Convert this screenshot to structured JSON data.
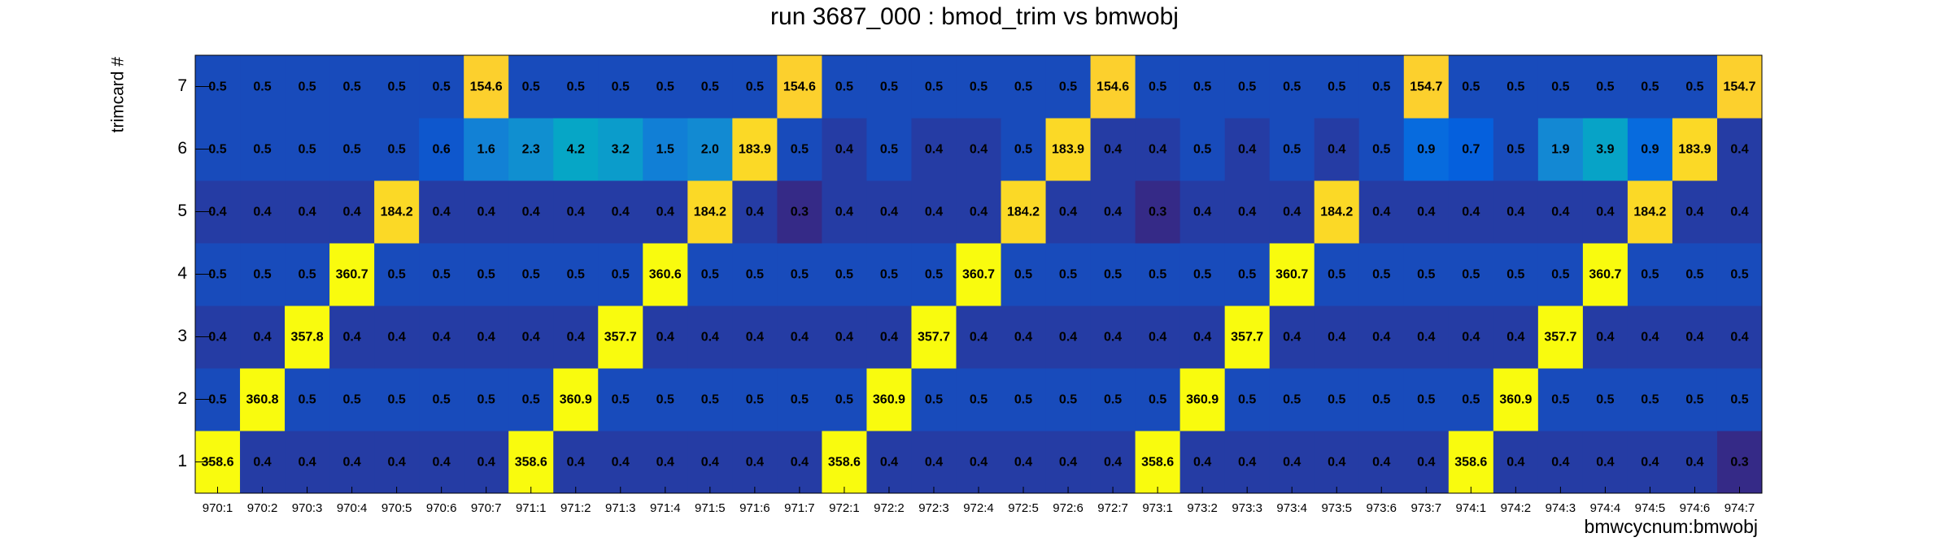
{
  "chart_data": {
    "type": "heatmap",
    "title": "run 3687_000 : bmod_trim vs bmwobj",
    "x_label": "bmwcycnum:bmwobj",
    "y_label": "trimcard #",
    "categories": [
      "970:1",
      "970:2",
      "970:3",
      "970:4",
      "970:5",
      "970:6",
      "970:7",
      "971:1",
      "971:2",
      "971:3",
      "971:4",
      "971:5",
      "971:6",
      "971:7",
      "972:1",
      "972:2",
      "972:3",
      "972:4",
      "972:5",
      "972:6",
      "972:7",
      "973:1",
      "973:2",
      "973:3",
      "973:4",
      "973:5",
      "973:6",
      "973:7",
      "974:1",
      "974:2",
      "974:3",
      "974:4",
      "974:5",
      "974:6",
      "974:7"
    ],
    "ylim": [
      0.5,
      7.5
    ],
    "yticks": [
      1,
      2,
      3,
      4,
      5,
      6,
      7
    ],
    "values": [
      [
        358.6,
        0.4,
        0.4,
        0.4,
        0.4,
        0.4,
        0.4,
        358.6,
        0.4,
        0.4,
        0.4,
        0.4,
        0.4,
        0.4,
        358.6,
        0.4,
        0.4,
        0.4,
        0.4,
        0.4,
        0.4,
        358.6,
        0.4,
        0.4,
        0.4,
        0.4,
        0.4,
        0.4,
        358.6,
        0.4,
        0.4,
        0.4,
        0.4,
        0.4,
        0.3
      ],
      [
        0.5,
        360.8,
        0.5,
        0.5,
        0.5,
        0.5,
        0.5,
        0.5,
        360.9,
        0.5,
        0.5,
        0.5,
        0.5,
        0.5,
        0.5,
        360.9,
        0.5,
        0.5,
        0.5,
        0.5,
        0.5,
        0.5,
        360.9,
        0.5,
        0.5,
        0.5,
        0.5,
        0.5,
        0.5,
        360.9,
        0.5,
        0.5,
        0.5,
        0.5,
        0.5
      ],
      [
        0.4,
        0.4,
        357.8,
        0.4,
        0.4,
        0.4,
        0.4,
        0.4,
        0.4,
        357.7,
        0.4,
        0.4,
        0.4,
        0.4,
        0.4,
        0.4,
        357.7,
        0.4,
        0.4,
        0.4,
        0.4,
        0.4,
        0.4,
        357.7,
        0.4,
        0.4,
        0.4,
        0.4,
        0.4,
        0.4,
        357.7,
        0.4,
        0.4,
        0.4,
        0.4
      ],
      [
        0.5,
        0.5,
        0.5,
        360.7,
        0.5,
        0.5,
        0.5,
        0.5,
        0.5,
        0.5,
        360.6,
        0.5,
        0.5,
        0.5,
        0.5,
        0.5,
        0.5,
        360.7,
        0.5,
        0.5,
        0.5,
        0.5,
        0.5,
        0.5,
        360.7,
        0.5,
        0.5,
        0.5,
        0.5,
        0.5,
        0.5,
        360.7,
        0.5,
        0.5,
        0.5
      ],
      [
        0.4,
        0.4,
        0.4,
        0.4,
        184.2,
        0.4,
        0.4,
        0.4,
        0.4,
        0.4,
        0.4,
        184.2,
        0.4,
        0.3,
        0.4,
        0.4,
        0.4,
        0.4,
        184.2,
        0.4,
        0.4,
        0.3,
        0.4,
        0.4,
        0.4,
        184.2,
        0.4,
        0.4,
        0.4,
        0.4,
        0.4,
        0.4,
        184.2,
        0.4,
        0.4
      ],
      [
        0.5,
        0.5,
        0.5,
        0.5,
        0.5,
        0.6,
        1.6,
        2.3,
        4.2,
        3.2,
        1.5,
        2.0,
        183.9,
        0.5,
        0.4,
        0.5,
        0.4,
        0.4,
        0.5,
        183.9,
        0.4,
        0.4,
        0.5,
        0.4,
        0.5,
        0.4,
        0.5,
        0.9,
        0.7,
        0.5,
        1.9,
        3.9,
        0.9,
        183.9,
        0.4
      ],
      [
        0.5,
        0.5,
        0.5,
        0.5,
        0.5,
        0.5,
        154.6,
        0.5,
        0.5,
        0.5,
        0.5,
        0.5,
        0.5,
        154.6,
        0.5,
        0.5,
        0.5,
        0.5,
        0.5,
        0.5,
        154.6,
        0.5,
        0.5,
        0.5,
        0.5,
        0.5,
        0.5,
        154.7,
        0.5,
        0.5,
        0.5,
        0.5,
        0.5,
        0.5,
        154.7
      ]
    ],
    "value_labels": [
      null,
      null,
      null,
      null,
      null,
      [
        null,
        null,
        null,
        null,
        null,
        null,
        null,
        null,
        null,
        null,
        null,
        "2.0",
        null,
        null,
        null,
        null,
        null,
        null,
        null,
        null,
        null,
        null,
        null,
        null,
        null,
        null,
        null,
        null,
        null,
        null,
        null,
        null,
        null,
        null,
        null
      ],
      null
    ],
    "log_z": true,
    "palette": [
      "#352a87",
      "#0363e1",
      "#1485d4",
      "#06a7c6",
      "#38b99e",
      "#92bf73",
      "#d9ba56",
      "#fcce2e",
      "#f9fb0e"
    ]
  }
}
